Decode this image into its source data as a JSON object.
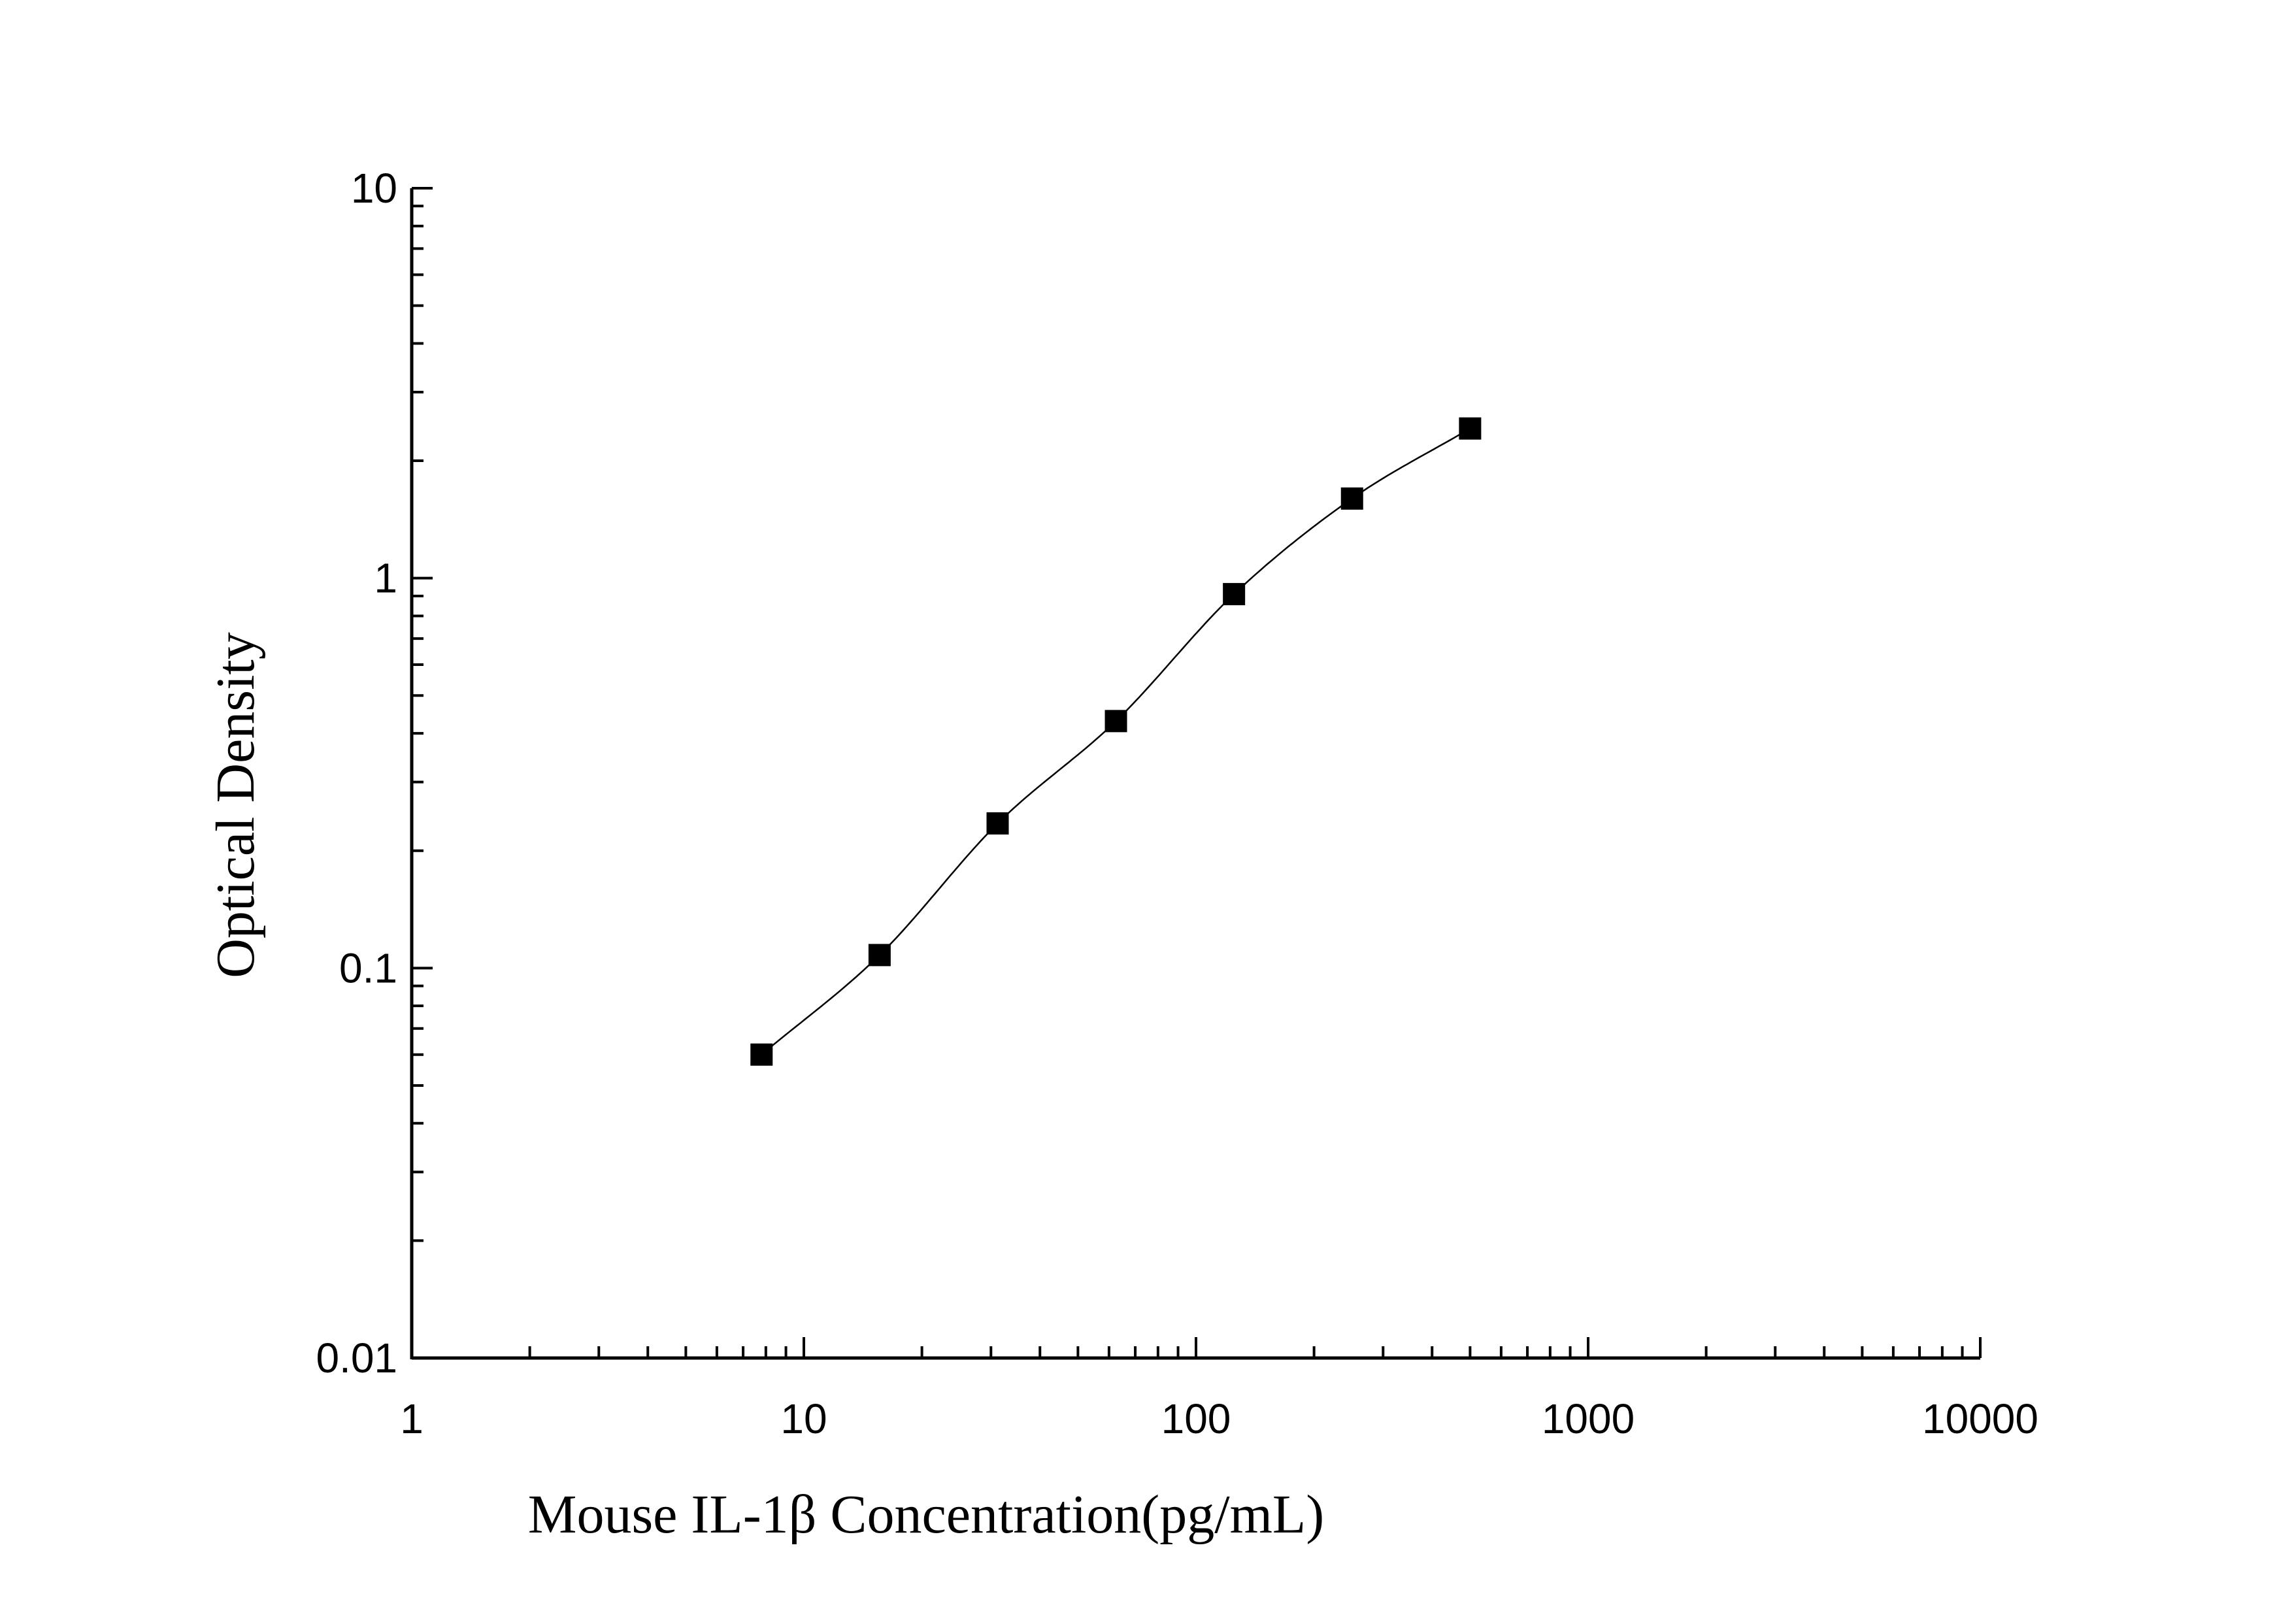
{
  "chart_data": {
    "type": "scatter",
    "xlabel": "Mouse IL-1β Concentration(pg/mL)",
    "ylabel": "Optical Density",
    "xscale": "log",
    "yscale": "log",
    "xlim": [
      1,
      10000
    ],
    "ylim": [
      0.01,
      10
    ],
    "x_ticks": [
      "1",
      "10",
      "100",
      "1000",
      "10000"
    ],
    "y_ticks": [
      "0.01",
      "0.1",
      "1",
      "10"
    ],
    "grid": false,
    "legend": "none",
    "series": [
      {
        "marker": "square",
        "color": "#000000",
        "fit_line": "smooth-curve",
        "points": [
          {
            "x": 7.8,
            "y": 0.06
          },
          {
            "x": 15.6,
            "y": 0.108
          },
          {
            "x": 31.2,
            "y": 0.235
          },
          {
            "x": 62.5,
            "y": 0.43
          },
          {
            "x": 125,
            "y": 0.91
          },
          {
            "x": 250,
            "y": 1.6
          },
          {
            "x": 500,
            "y": 2.42
          }
        ]
      }
    ]
  }
}
